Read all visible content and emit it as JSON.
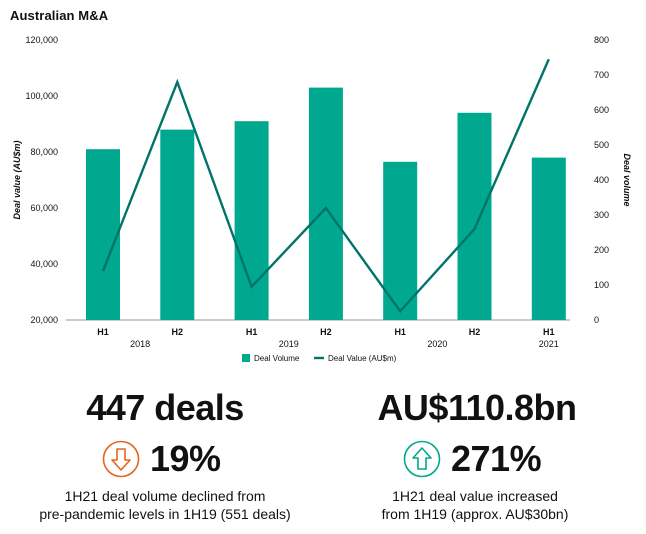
{
  "title": "Australian M&A",
  "chart_data": {
    "type": "bar",
    "categories": [
      "H1",
      "H2",
      "H1",
      "H2",
      "H1",
      "H2",
      "H1"
    ],
    "year_labels": [
      "2018",
      "2019",
      "2020",
      "2021"
    ],
    "series": [
      {
        "name": "Deal Volume",
        "type": "bar",
        "axis": "left",
        "color": "#00a88f",
        "values": [
          81000,
          88000,
          91000,
          103000,
          76500,
          94000,
          78000
        ]
      },
      {
        "name": "Deal Value (AU$m)",
        "type": "line",
        "axis": "right",
        "color": "#00746a",
        "values": [
          140,
          680,
          95,
          320,
          25,
          260,
          745
        ]
      }
    ],
    "ylabel_left": "Deal value (AU$m)",
    "ylabel_right": "Deal volume",
    "ylim_left": [
      20000,
      120000
    ],
    "yticks_left": [
      "20,000",
      "40,000",
      "60,000",
      "80,000",
      "100,000",
      "120,000"
    ],
    "ylim_right": [
      0,
      800
    ],
    "yticks_right": [
      "0",
      "100",
      "200",
      "300",
      "400",
      "500",
      "600",
      "700",
      "800"
    ],
    "grid": false,
    "legend_position": "bottom"
  },
  "kpis": [
    {
      "headline": "447 deals",
      "direction": "down",
      "icon": "arrow-down-circle-icon",
      "icon_color": "#e8641e",
      "percent": "19%",
      "desc_line1": "1H21 deal volume declined from",
      "desc_line2": "pre-pandemic levels in 1H19 (551 deals)"
    },
    {
      "headline": "AU$110.8bn",
      "direction": "up",
      "icon": "arrow-up-circle-icon",
      "icon_color": "#00a88f",
      "percent": "271%",
      "desc_line1": "1H21 deal value increased",
      "desc_line2": "from 1H19 (approx. AU$30bn)"
    }
  ]
}
